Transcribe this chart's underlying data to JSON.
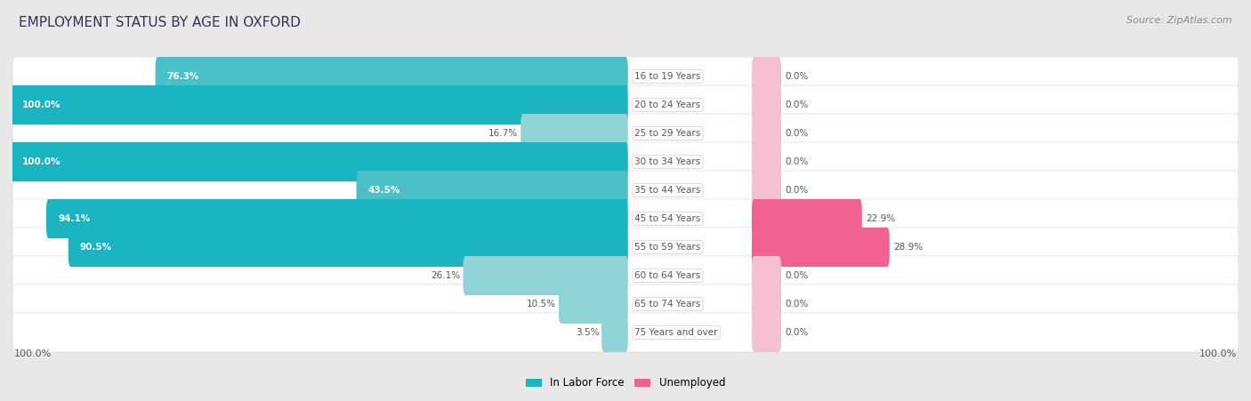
{
  "title": "EMPLOYMENT STATUS BY AGE IN OXFORD",
  "source": "Source: ZipAtlas.com",
  "categories": [
    "16 to 19 Years",
    "20 to 24 Years",
    "25 to 29 Years",
    "30 to 34 Years",
    "35 to 44 Years",
    "45 to 54 Years",
    "55 to 59 Years",
    "60 to 64 Years",
    "65 to 74 Years",
    "75 Years and over"
  ],
  "labor_force": [
    76.3,
    100.0,
    16.7,
    100.0,
    43.5,
    94.1,
    90.5,
    26.1,
    10.5,
    3.5
  ],
  "unemployed": [
    0.0,
    0.0,
    0.0,
    0.0,
    0.0,
    22.9,
    28.9,
    0.0,
    0.0,
    0.0
  ],
  "labor_color_dark": "#1ab5c0",
  "labor_color_mid": "#4cc0c8",
  "labor_color_light": "#90d4d8",
  "unemployed_color_dark": "#f06090",
  "unemployed_color_light": "#f5c0d0",
  "bg_color": "#e8e8e8",
  "row_bg": "#f5f5f5",
  "row_bg_alt": "#ebebeb",
  "label_color_dark": "#555555",
  "label_color_white": "#ffffff",
  "axis_label": "100.0%",
  "max_value": 100.0,
  "title_color": "#333355",
  "source_color": "#888888"
}
